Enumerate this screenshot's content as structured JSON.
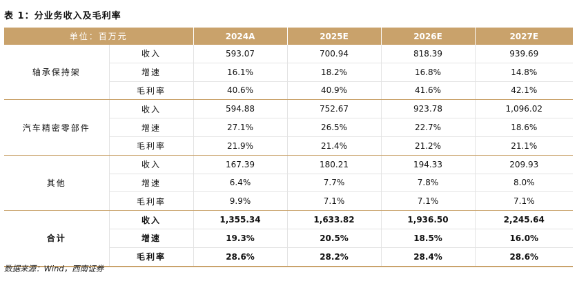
{
  "title": "表 1：分业务收入及毛利率",
  "header": {
    "unit": "单位：百万元",
    "years": [
      "2024A",
      "2025E",
      "2026E",
      "2027E"
    ]
  },
  "segments": [
    {
      "name": "轴承保持架",
      "rows": [
        {
          "metric": "收入",
          "values": [
            "593.07",
            "700.94",
            "818.39",
            "939.69"
          ]
        },
        {
          "metric": "增速",
          "values": [
            "16.1%",
            "18.2%",
            "16.8%",
            "14.8%"
          ]
        },
        {
          "metric": "毛利率",
          "values": [
            "40.6%",
            "40.9%",
            "41.6%",
            "42.1%"
          ]
        }
      ]
    },
    {
      "name": "汽车精密零部件",
      "rows": [
        {
          "metric": "收入",
          "values": [
            "594.88",
            "752.67",
            "923.78",
            "1,096.02"
          ]
        },
        {
          "metric": "增速",
          "values": [
            "27.1%",
            "26.5%",
            "22.7%",
            "18.6%"
          ]
        },
        {
          "metric": "毛利率",
          "values": [
            "21.9%",
            "21.4%",
            "21.2%",
            "21.1%"
          ]
        }
      ]
    },
    {
      "name": "其他",
      "rows": [
        {
          "metric": "收入",
          "values": [
            "167.39",
            "180.21",
            "194.33",
            "209.93"
          ]
        },
        {
          "metric": "增速",
          "values": [
            "6.4%",
            "7.7%",
            "7.8%",
            "8.0%"
          ]
        },
        {
          "metric": "毛利率",
          "values": [
            "9.9%",
            "7.1%",
            "7.1%",
            "7.1%"
          ]
        }
      ]
    },
    {
      "name": "合计",
      "rows": [
        {
          "metric": "收入",
          "values": [
            "1,355.34",
            "1,633.82",
            "1,936.50",
            "2,245.64"
          ]
        },
        {
          "metric": "增速",
          "values": [
            "19.3%",
            "20.5%",
            "18.5%",
            "16.0%"
          ]
        },
        {
          "metric": "毛利率",
          "values": [
            "28.6%",
            "28.2%",
            "28.4%",
            "28.6%"
          ]
        }
      ]
    }
  ],
  "source": "数据来源：Wind，西南证券",
  "colors": {
    "header_bg": "#c9a26b",
    "header_text": "#ffffff",
    "grid_line": "#e3e3e3"
  }
}
